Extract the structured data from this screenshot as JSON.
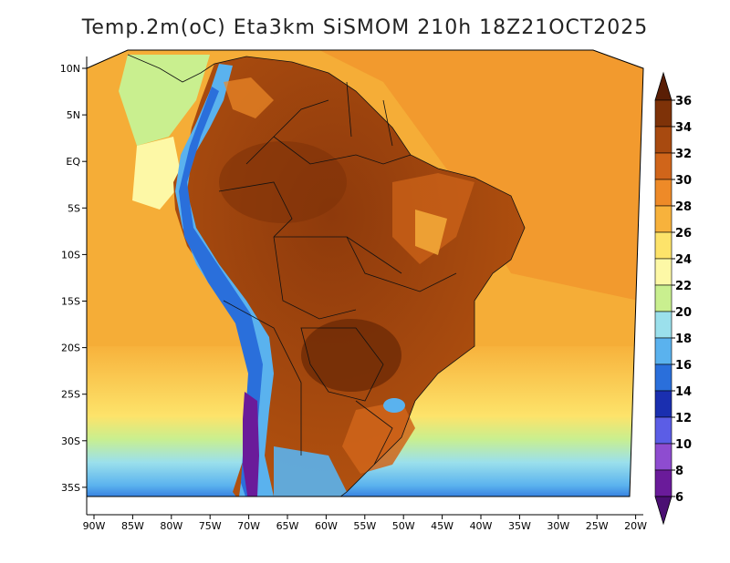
{
  "title": "Temp.2m(oC) Eta3km SiSMOM 210h 18Z21OCT2025",
  "map": {
    "variable": "2 m air temperature",
    "units": "oC",
    "model": "Eta3km SiSMOM",
    "forecast_hour": "210h",
    "valid_time": "18Z21OCT2025",
    "lat_range": [
      -38,
      12
    ],
    "lon_range": [
      -91,
      -20
    ],
    "lat_ticks": [
      "10N",
      "5N",
      "EQ",
      "5S",
      "10S",
      "15S",
      "20S",
      "25S",
      "30S",
      "35S"
    ],
    "lon_ticks": [
      "90W",
      "85W",
      "80W",
      "75W",
      "70W",
      "65W",
      "60W",
      "55W",
      "50W",
      "45W",
      "40W",
      "35W",
      "30W",
      "25W",
      "20W"
    ]
  },
  "colorbar": {
    "labels": [
      "36",
      "34",
      "32",
      "30",
      "28",
      "26",
      "24",
      "22",
      "20",
      "18",
      "16",
      "14",
      "12",
      "10",
      "8",
      "6"
    ],
    "colors": [
      "#5a1e05",
      "#7e3208",
      "#a84a10",
      "#d0651a",
      "#ee8a28",
      "#f7b23c",
      "#fde36a",
      "#fdf8a6",
      "#c9ef8f",
      "#9be0ec",
      "#5ab2ee",
      "#2a6fdb",
      "#1a2fb0",
      "#5b5de6",
      "#8e4cd0",
      "#6a1b9a",
      "#4b0f73"
    ]
  }
}
